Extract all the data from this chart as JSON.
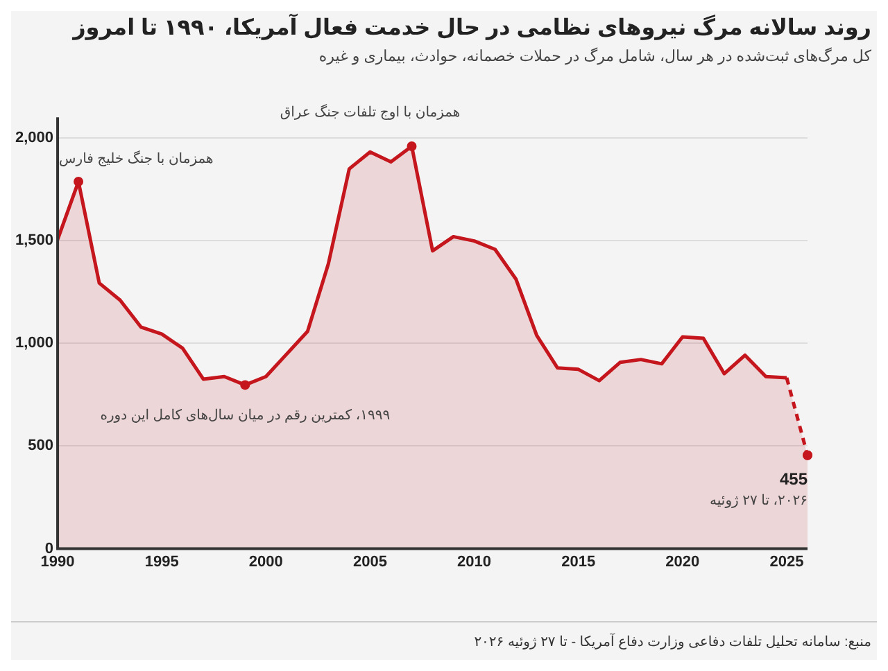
{
  "chart_data": {
    "type": "area",
    "title": "روند سالانه مرگ نیروهای نظامی در حال خدمت فعال آمریکا، ۱۹۹۰ تا امروز",
    "subtitle": "کل مرگ‌های ثبت‌شده در هر سال، شامل مرگ در حملات خصمانه، حوادث، بیماری و غیره",
    "series": [
      {
        "color": "#c4161c",
        "line_style": "solid",
        "x": [
          1990,
          1991,
          1992,
          1993,
          1994,
          1995,
          1996,
          1997,
          1998,
          1999,
          2000,
          2001,
          2002,
          2003,
          2004,
          2005,
          2006,
          2007,
          2008,
          2009,
          2010,
          2011,
          2012,
          2013,
          2014,
          2015,
          2016,
          2017,
          2018,
          2019,
          2020,
          2021,
          2022,
          2023,
          2024,
          2025
        ],
        "values": [
          1505,
          1787,
          1293,
          1210,
          1079,
          1045,
          976,
          825,
          838,
          797,
          838,
          948,
          1058,
          1388,
          1849,
          1931,
          1883,
          1959,
          1450,
          1519,
          1498,
          1457,
          1313,
          1038,
          880,
          873,
          818,
          907,
          921,
          900,
          1031,
          1024,
          852,
          942,
          838,
          832
        ]
      },
      {
        "color": "#c4161c",
        "line_style": "dashed",
        "x": [
          2025,
          2026
        ],
        "values": [
          832,
          455
        ]
      }
    ],
    "xlim": [
      1990,
      2026
    ],
    "xticks": [
      1990,
      1995,
      2000,
      2005,
      2010,
      2015,
      2020,
      2025
    ],
    "ylim": [
      0,
      2100
    ],
    "yticks": [
      0,
      500,
      {
        "value": 1000,
        "label": "1,000"
      },
      {
        "value": 1500,
        "label": "1,500"
      },
      {
        "value": 2000,
        "label": "2,000"
      }
    ],
    "grid": "y",
    "legend": false,
    "annotations": [
      {
        "text": "همزمان با جنگ خلیج فارس",
        "x": 1991,
        "y": 1787
      },
      {
        "text": "۱۹۹۹، کمترین رقم در میان سال‌های کامل این دوره",
        "x": 1999,
        "y": 797
      },
      {
        "text": "همزمان با اوج تلفات جنگ عراق",
        "x": 2007,
        "y": 1959
      },
      {
        "text": "455",
        "x": 2026,
        "y": 455
      },
      {
        "text": "۲۰۲۶، تا ۲۷ ژوئیه",
        "x": 2026,
        "y": 455
      },
      "منبع: سامانه تحلیل تلفات دفاعی وزارت دفاع آمریکا - تا ۲۷ ژوئیه ۲۰۲۶"
    ]
  }
}
